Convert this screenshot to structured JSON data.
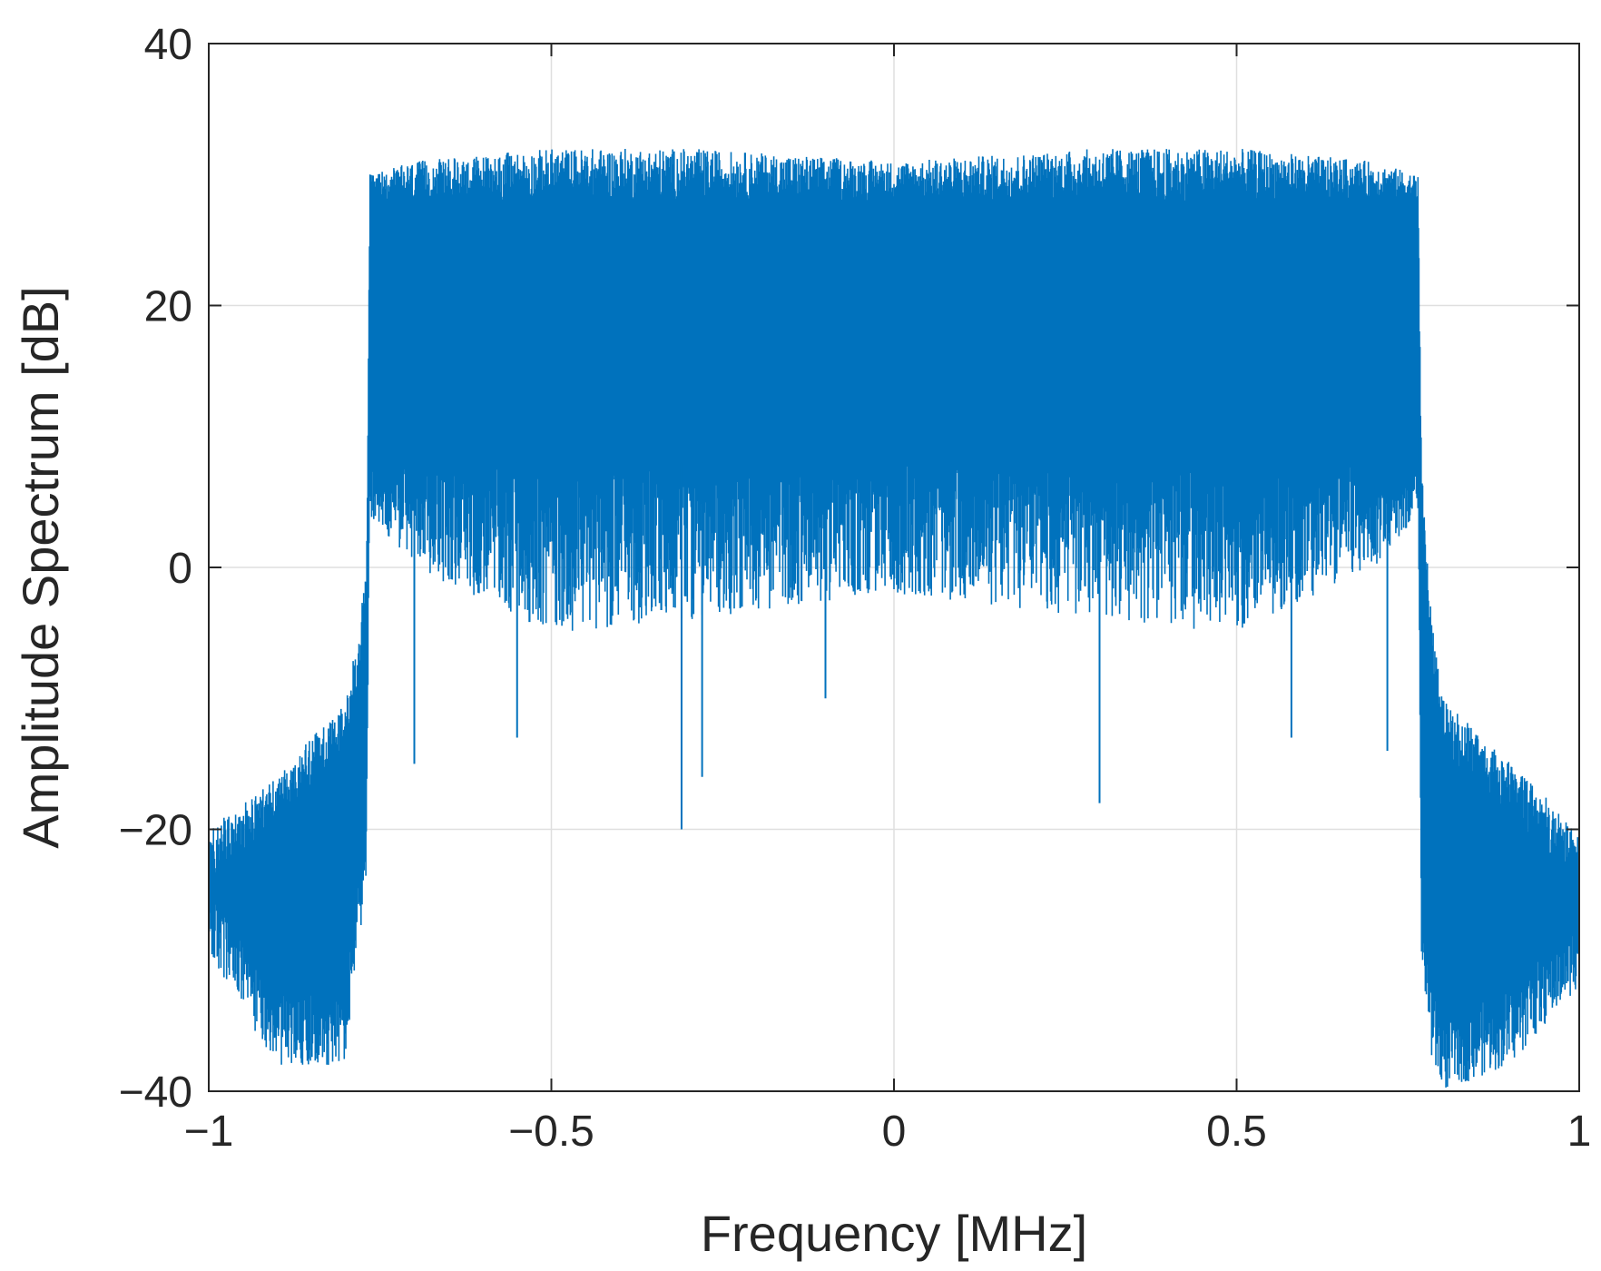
{
  "chart_data": {
    "type": "line",
    "xlabel": "Frequency [MHz]",
    "ylabel": "Amplitude Spectrum [dB]",
    "xlim": [
      -1,
      1
    ],
    "ylim": [
      -40,
      40
    ],
    "xticks": [
      -1,
      -0.5,
      0,
      0.5,
      1
    ],
    "xtick_labels": [
      "−1",
      "−0.5",
      "0",
      "0.5",
      "1"
    ],
    "yticks": [
      -40,
      -20,
      0,
      20,
      40
    ],
    "ytick_labels": [
      "−40",
      "−20",
      "0",
      "20",
      "40"
    ],
    "grid": true,
    "line_color": "#0072BD",
    "series": [
      {
        "description_points": {
          "x": [
            -1.0,
            -0.9,
            -0.8,
            -0.785,
            -0.77,
            -0.765,
            -0.7,
            -0.5,
            -0.3,
            0,
            0.3,
            0.5,
            0.7,
            0.765,
            0.77,
            0.785,
            0.8,
            0.9,
            1.0
          ],
          "upper_envelope": [
            -20,
            -16,
            -10,
            -6,
            0,
            30,
            31,
            32,
            32,
            31,
            32,
            32,
            31,
            30,
            8,
            -4,
            -10,
            -15,
            -20
          ],
          "lower_envelope": [
            -30,
            -38,
            -38,
            -30,
            -25,
            4,
            0,
            -5,
            -4,
            -2,
            -4,
            -5,
            0,
            4,
            -30,
            -38,
            -40,
            -38,
            -32
          ],
          "band_upper_typical": 28,
          "band_lower_typical": 8,
          "deep_dips": [
            {
              "x": -0.7,
              "y": -15
            },
            {
              "x": -0.55,
              "y": -13
            },
            {
              "x": -0.31,
              "y": -20
            },
            {
              "x": -0.28,
              "y": -16
            },
            {
              "x": -0.1,
              "y": -10
            },
            {
              "x": 0.3,
              "y": -18
            },
            {
              "x": 0.58,
              "y": -13
            },
            {
              "x": 0.72,
              "y": -14
            }
          ]
        }
      }
    ]
  }
}
